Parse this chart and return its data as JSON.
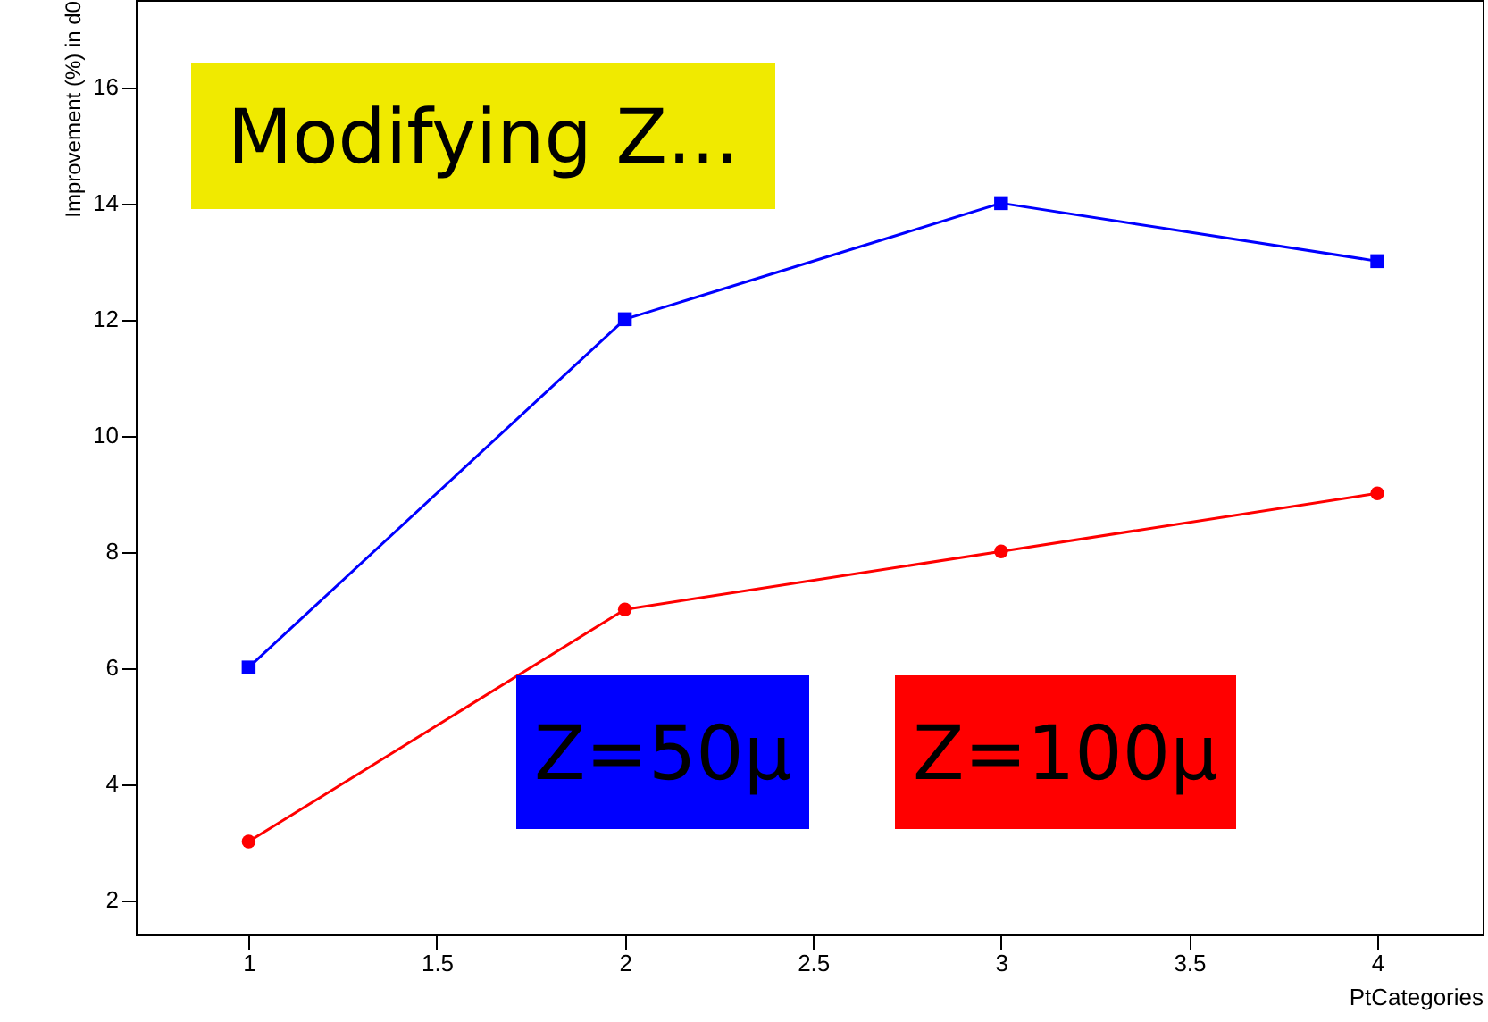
{
  "chart_data": {
    "type": "line",
    "title": "Modifying Z...",
    "xlabel": "PtCategories",
    "ylabel": "Improvement (%) in d0",
    "x": [
      1,
      2,
      3,
      4
    ],
    "series": [
      {
        "name": "Z=50μ",
        "color": "#0000ff",
        "values": [
          6,
          12,
          14,
          13
        ],
        "marker": "square"
      },
      {
        "name": "Z=100μ",
        "color": "#ff0000",
        "values": [
          3,
          7,
          8,
          9
        ],
        "marker": "circle"
      }
    ],
    "xlim": [
      0.7,
      4.28
    ],
    "xticks": [
      1,
      1.5,
      2,
      2.5,
      3,
      3.5,
      4
    ],
    "ylim": [
      1.4,
      17.5
    ],
    "yticks": [
      2,
      4,
      6,
      8,
      10,
      12,
      14,
      16
    ],
    "grid": false,
    "legend": "bottom"
  }
}
